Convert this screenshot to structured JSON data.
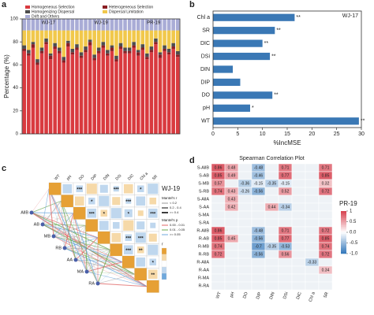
{
  "chart_data": [
    {
      "type": "stacked-bar",
      "panel": "a",
      "ylabel": "Percentage (%)",
      "groups": [
        "WJ-17",
        "WJ-19",
        "PR-19"
      ],
      "categories": [
        null,
        null,
        null,
        null,
        null,
        null,
        null,
        null,
        null,
        null,
        null,
        null,
        null,
        null,
        null,
        null,
        null,
        null,
        null,
        null,
        null,
        null,
        null,
        null,
        null,
        null,
        null,
        null,
        null,
        null,
        null,
        null,
        null,
        null,
        null,
        null
      ],
      "series": [
        {
          "name": "Homogeneous Selection",
          "color": "#d93a3f",
          "values": [
            72,
            68,
            75,
            60,
            70,
            78,
            65,
            74,
            70,
            62,
            76,
            69,
            73,
            66,
            71,
            77,
            64,
            70,
            75,
            68,
            72,
            63,
            74,
            70,
            70,
            75,
            68,
            73,
            65,
            71,
            78,
            66,
            72,
            69,
            74,
            67
          ]
        },
        {
          "name": "Heterogeneous Selection",
          "color": "#8a1f24",
          "values": [
            2,
            2,
            3,
            2,
            2,
            2,
            3,
            2,
            2,
            2,
            3,
            2,
            2,
            2,
            2,
            3,
            2,
            2,
            2,
            2,
            3,
            2,
            2,
            2,
            2,
            2,
            3,
            2,
            2,
            2,
            2,
            3,
            2,
            2,
            2,
            2
          ]
        },
        {
          "name": "Homogenizing Dispersal",
          "color": "#4d4d4d",
          "values": [
            3,
            3,
            2,
            3,
            3,
            3,
            2,
            3,
            3,
            3,
            2,
            3,
            3,
            3,
            3,
            2,
            3,
            3,
            3,
            3,
            2,
            3,
            3,
            3,
            3,
            3,
            2,
            3,
            3,
            3,
            3,
            2,
            3,
            3,
            3,
            3
          ]
        },
        {
          "name": "Dispersal Limitation",
          "color": "#f1c84b",
          "values": [
            13,
            17,
            10,
            25,
            15,
            7,
            20,
            11,
            15,
            23,
            9,
            16,
            12,
            19,
            14,
            8,
            21,
            15,
            10,
            17,
            13,
            22,
            11,
            15,
            15,
            10,
            17,
            12,
            20,
            14,
            7,
            19,
            13,
            16,
            11,
            18
          ]
        },
        {
          "name": "Drift and Others",
          "color": "#a9acd6",
          "values": [
            10,
            10,
            10,
            10,
            10,
            10,
            10,
            10,
            10,
            10,
            10,
            10,
            10,
            10,
            10,
            10,
            10,
            10,
            10,
            10,
            10,
            10,
            10,
            10,
            10,
            10,
            10,
            10,
            10,
            10,
            10,
            10,
            10,
            10,
            10,
            10
          ]
        }
      ],
      "ylim": [
        0,
        100
      ],
      "yticks": [
        0,
        20,
        40,
        60,
        80,
        100
      ]
    },
    {
      "type": "hbar",
      "panel": "b",
      "title": "WJ-17",
      "xlabel": "%IncMSE",
      "categories": [
        "Chl a",
        "SR",
        "DIC",
        "DSi",
        "DIN",
        "DIP",
        "DO",
        "pH",
        "WT"
      ],
      "values": [
        16.5,
        12.5,
        10,
        11.5,
        4,
        5.5,
        12,
        7.5,
        29.5
      ],
      "annotations": [
        "**",
        "**",
        "**",
        "**",
        null,
        null,
        "**",
        "*",
        "**"
      ],
      "color": "#3a78b5",
      "xlim": [
        0,
        30
      ],
      "xticks": [
        0,
        5,
        10,
        15,
        20,
        25,
        30
      ]
    },
    {
      "type": "mantel",
      "panel": "c",
      "title": "WJ-19",
      "variables": [
        "WT",
        "pH",
        "DO",
        "DIP",
        "DIN",
        "DSi",
        "DIC",
        "Chl a",
        "SR"
      ],
      "nodes": [
        "AllB",
        "AB",
        "MB",
        "RB",
        "AA",
        "MA",
        "RA"
      ],
      "stars": [
        [
          null,
          null,
          "***",
          null,
          null,
          "***",
          null,
          "*",
          null
        ],
        [
          null,
          null,
          null,
          "*",
          null,
          null,
          "***",
          null,
          null
        ],
        [
          null,
          null,
          null,
          "***",
          "*",
          null,
          "*",
          null,
          "***"
        ],
        [
          null,
          null,
          null,
          null,
          null,
          null,
          null,
          null,
          null
        ],
        [
          null,
          null,
          null,
          null,
          null,
          null,
          "***",
          "***",
          null
        ],
        [
          null,
          null,
          null,
          null,
          null,
          null,
          "***",
          "**",
          null
        ],
        [
          null,
          null,
          null,
          null,
          null,
          null,
          null,
          null,
          "*"
        ],
        [
          null,
          null,
          null,
          null,
          null,
          null,
          null,
          null,
          "**"
        ],
        [
          null,
          null,
          null,
          null,
          null,
          null,
          null,
          null,
          null
        ]
      ],
      "legend_r_title": "Mantel's r",
      "legend_r": [
        "< 0.2",
        "0.2 - 0.4",
        ">= 0.4"
      ],
      "legend_p_title": "Mantel's p",
      "legend_p": [
        "0.00 - 0.01",
        "0.01 - 0.05",
        ">= 0.05"
      ],
      "colorbar_title": "r"
    },
    {
      "type": "heatmap",
      "panel": "d",
      "title": "Spearman Correlation Plot",
      "label": "PR-19",
      "rows": [
        "S-AllB",
        "S-AB",
        "S-MB",
        "S-RB",
        "S-AllA",
        "S-AA",
        "S-MA",
        "S-RA",
        "R-AllB",
        "R-AB",
        "R-MB",
        "R-RB",
        "R-AllA",
        "R-AA",
        "R-MA",
        "R-RA"
      ],
      "columns": [
        "WT",
        "pH",
        "DO",
        "DIP",
        "DIN",
        "DSi",
        "DIC",
        "Chl a",
        "SR"
      ],
      "values": [
        [
          0.86,
          0.48,
          null,
          -0.48,
          null,
          0.71,
          null,
          null,
          0.71
        ],
        [
          0.85,
          0.49,
          null,
          -0.46,
          null,
          0.77,
          null,
          null,
          0.85
        ],
        [
          0.57,
          null,
          -0.36,
          -0.15,
          -0.35,
          -0.15,
          null,
          null,
          0.32
        ],
        [
          0.74,
          0.43,
          -0.26,
          -0.56,
          null,
          0.52,
          null,
          null,
          0.72
        ],
        [
          null,
          0.43,
          null,
          null,
          null,
          null,
          null,
          null,
          null
        ],
        [
          null,
          0.42,
          null,
          null,
          0.44,
          -0.34,
          null,
          null,
          null
        ],
        [
          null,
          null,
          null,
          null,
          null,
          null,
          null,
          null,
          null
        ],
        [
          null,
          null,
          null,
          null,
          null,
          null,
          null,
          null,
          null
        ],
        [
          0.86,
          null,
          null,
          -0.48,
          null,
          0.71,
          null,
          null,
          0.72
        ],
        [
          0.85,
          0.45,
          null,
          -0.56,
          null,
          0.77,
          null,
          null,
          0.85
        ],
        [
          0.74,
          null,
          null,
          -0.7,
          -0.35,
          -0.53,
          null,
          null,
          0.74
        ],
        [
          0.72,
          null,
          null,
          -0.56,
          null,
          0.56,
          null,
          null,
          0.72
        ],
        [
          null,
          null,
          null,
          null,
          null,
          null,
          null,
          -0.33,
          null
        ],
        [
          null,
          null,
          null,
          null,
          null,
          null,
          null,
          null,
          0.34
        ],
        [
          null,
          null,
          null,
          null,
          null,
          null,
          null,
          null,
          null
        ],
        [
          null,
          null,
          null,
          null,
          null,
          null,
          null,
          null,
          null
        ]
      ],
      "clim": [
        -1,
        1
      ],
      "cticks": [
        {
          "value": 1,
          "label": "1"
        },
        0.5,
        {
          "value": 0,
          "label": "0.0"
        },
        -0.5,
        {
          "value": -1,
          "label": "-1.0"
        }
      ]
    }
  ]
}
